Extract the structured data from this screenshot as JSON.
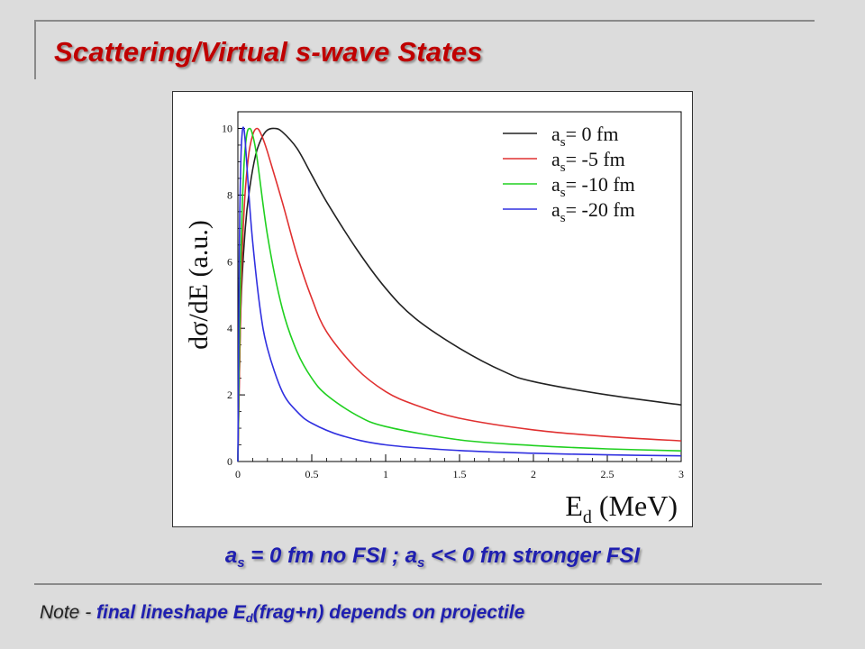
{
  "slide": {
    "title": "Scattering/Virtual s-wave States",
    "caption": {
      "a1": "a",
      "s1": "s",
      "t1": " = 0 fm  no FSI ; a",
      "s2": "s",
      "t2": " << 0 fm stronger FSI"
    },
    "note": {
      "label": "Note - ",
      "t1": " final lineshape E",
      "sub": "d",
      "t2": "(frag+n) depends on projectile"
    }
  },
  "chart_data": {
    "type": "line",
    "ylabel": "dσ/dE (a.u.)",
    "xlabel": "E",
    "xlabel_sub": "d",
    "xlabel_unit": " (MeV)",
    "xlim": [
      0,
      3
    ],
    "ylim": [
      0,
      10.5
    ],
    "xticks": [
      "0",
      "0.5",
      "1",
      "1.5",
      "2",
      "2.5",
      "3"
    ],
    "yticks": [
      "0",
      "2",
      "4",
      "6",
      "8",
      "10"
    ],
    "legend_position": "top-right",
    "series": [
      {
        "name": "= 0 fm",
        "label_prefix": "a",
        "label_sub": "s",
        "color": "#222222",
        "x": [
          0,
          0.02,
          0.05,
          0.08,
          0.12,
          0.16,
          0.2,
          0.25,
          0.3,
          0.4,
          0.5,
          0.6,
          0.8,
          1.0,
          1.2,
          1.5,
          1.8,
          2.0,
          2.5,
          3.0
        ],
        "y": [
          0,
          4.6,
          7.0,
          8.2,
          9.2,
          9.7,
          9.95,
          10.0,
          9.9,
          9.4,
          8.6,
          7.8,
          6.4,
          5.2,
          4.3,
          3.4,
          2.7,
          2.4,
          2.0,
          1.7
        ]
      },
      {
        "name": "= -5 fm",
        "label_prefix": "a",
        "label_sub": "s",
        "color": "#e03030",
        "x": [
          0,
          0.02,
          0.04,
          0.07,
          0.1,
          0.13,
          0.16,
          0.2,
          0.3,
          0.4,
          0.5,
          0.6,
          0.8,
          1.0,
          1.2,
          1.5,
          2.0,
          2.5,
          3.0
        ],
        "y": [
          0,
          4.8,
          7.4,
          9.1,
          9.8,
          10.0,
          9.8,
          9.3,
          7.8,
          6.2,
          4.9,
          3.9,
          2.8,
          2.1,
          1.7,
          1.3,
          0.95,
          0.75,
          0.62
        ]
      },
      {
        "name": "= -10 fm",
        "label_prefix": "a",
        "label_sub": "s",
        "color": "#20d020",
        "x": [
          0,
          0.02,
          0.04,
          0.06,
          0.08,
          0.1,
          0.13,
          0.2,
          0.3,
          0.4,
          0.5,
          0.6,
          0.8,
          1.0,
          1.5,
          2.0,
          2.5,
          3.0
        ],
        "y": [
          0,
          6.1,
          8.8,
          9.8,
          10.0,
          9.8,
          9.1,
          6.8,
          4.6,
          3.3,
          2.5,
          2.0,
          1.4,
          1.05,
          0.65,
          0.48,
          0.38,
          0.32
        ]
      },
      {
        "name": "= -20 fm",
        "label_prefix": "a",
        "label_sub": "s",
        "color": "#3030e0",
        "x": [
          0,
          0.01,
          0.02,
          0.03,
          0.04,
          0.05,
          0.07,
          0.1,
          0.15,
          0.2,
          0.3,
          0.4,
          0.5,
          0.7,
          1.0,
          1.5,
          2.0,
          2.5,
          3.0
        ],
        "y": [
          0,
          6.3,
          9.0,
          9.9,
          10.0,
          9.6,
          8.3,
          6.6,
          4.6,
          3.4,
          2.1,
          1.5,
          1.15,
          0.78,
          0.5,
          0.33,
          0.25,
          0.2,
          0.17
        ]
      }
    ]
  }
}
